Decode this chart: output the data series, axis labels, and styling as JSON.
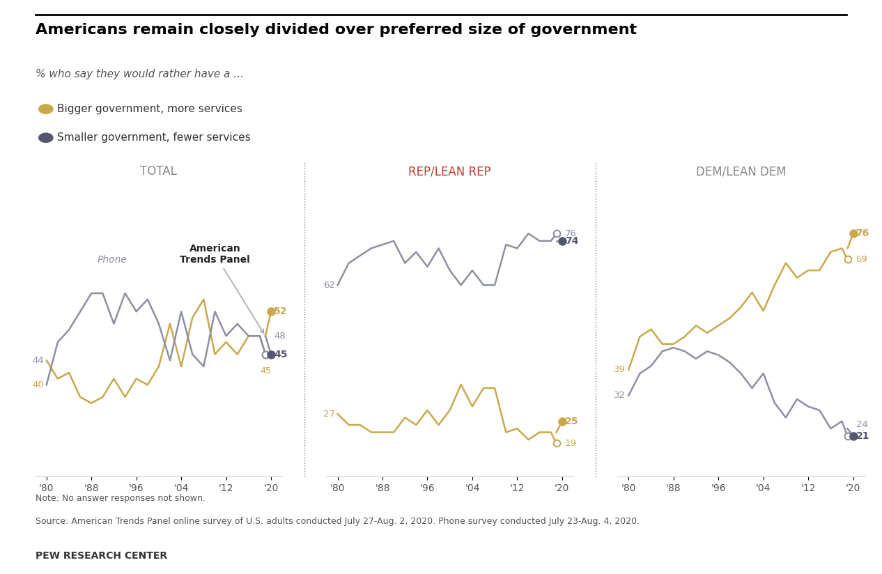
{
  "title": "Americans remain closely divided over preferred size of government",
  "subtitle": "% who say they would rather have a ...",
  "legend_bigger": "Bigger government, more services",
  "legend_smaller": "Smaller government, fewer services",
  "color_bigger": "#C9A84C",
  "color_smaller": "#8C8FA3",
  "color_smaller_dark": "#555770",
  "note": "Note: No answer responses not shown.",
  "source": "Source: American Trends Panel online survey of U.S. adults conducted July 27-Aug. 2, 2020. Phone survey conducted July 23-Aug. 4, 2020.",
  "pew": "PEW RESEARCH CENTER",
  "total_years_phone": [
    1980,
    1982,
    1984,
    1986,
    1988,
    1990,
    1992,
    1994,
    1996,
    1998,
    2000,
    2002,
    2004,
    2006,
    2008,
    2010,
    2012,
    2014,
    2016,
    2018,
    2019
  ],
  "total_bigger_phone": [
    44,
    41,
    42,
    38,
    37,
    38,
    41,
    38,
    41,
    40,
    43,
    50,
    43,
    51,
    54,
    45,
    47,
    45,
    48,
    48,
    45
  ],
  "total_smaller_phone": [
    40,
    47,
    49,
    52,
    55,
    55,
    50,
    55,
    52,
    54,
    50,
    44,
    52,
    45,
    43,
    52,
    48,
    50,
    48,
    48,
    45
  ],
  "total_years_atp": [
    2019,
    2020
  ],
  "total_bigger_atp": [
    48,
    52
  ],
  "total_smaller_atp": [
    48,
    45
  ],
  "rep_years_phone": [
    1980,
    1982,
    1984,
    1986,
    1988,
    1990,
    1992,
    1994,
    1996,
    1998,
    2000,
    2002,
    2004,
    2006,
    2008,
    2010,
    2012,
    2014,
    2016,
    2018,
    2019
  ],
  "rep_bigger_phone": [
    27,
    24,
    24,
    22,
    22,
    22,
    26,
    24,
    28,
    24,
    28,
    35,
    29,
    34,
    34,
    22,
    23,
    20,
    22,
    22,
    19
  ],
  "rep_smaller_phone": [
    62,
    68,
    70,
    72,
    73,
    74,
    68,
    71,
    67,
    72,
    66,
    62,
    66,
    62,
    62,
    73,
    72,
    76,
    74,
    74,
    76
  ],
  "rep_years_atp": [
    2019,
    2020
  ],
  "rep_bigger_atp": [
    22,
    25
  ],
  "rep_smaller_atp": [
    74,
    74
  ],
  "dem_years_phone": [
    1980,
    1982,
    1984,
    1986,
    1988,
    1990,
    1992,
    1994,
    1996,
    1998,
    2000,
    2002,
    2004,
    2006,
    2008,
    2010,
    2012,
    2014,
    2016,
    2018,
    2019
  ],
  "dem_bigger_phone": [
    39,
    48,
    50,
    46,
    46,
    48,
    51,
    49,
    51,
    53,
    56,
    60,
    55,
    62,
    68,
    64,
    66,
    66,
    71,
    72,
    69
  ],
  "dem_smaller_phone": [
    32,
    38,
    40,
    44,
    45,
    44,
    42,
    44,
    43,
    41,
    38,
    34,
    38,
    30,
    26,
    31,
    29,
    28,
    23,
    25,
    21
  ],
  "dem_years_atp": [
    2019,
    2020
  ],
  "dem_bigger_atp": [
    72,
    76
  ],
  "dem_smaller_atp": [
    23,
    21
  ],
  "xlim": [
    1978,
    2022
  ],
  "ylim_total": [
    20,
    70
  ],
  "ylim_rep": [
    10,
    85
  ],
  "ylim_dem": [
    10,
    85
  ],
  "panel_titles": [
    "TOTAL",
    "REP/LEAN REP",
    "DEM/LEAN DEM"
  ],
  "panel_title_colors": [
    "#888888",
    "#C0392B",
    "#888888"
  ],
  "xticks": [
    1980,
    1988,
    1996,
    2004,
    2012,
    2020
  ],
  "xticklabels": [
    "'80",
    "'88",
    "'96",
    "'04",
    "'12",
    "'20"
  ]
}
